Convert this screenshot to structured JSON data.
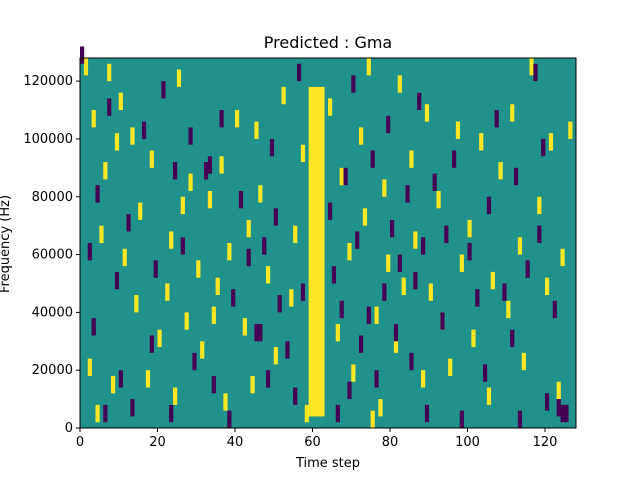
{
  "chart_data": {
    "type": "heatmap",
    "title": "Predicted : Gma",
    "xlabel": "Time step",
    "ylabel": "Frequency (Hz)",
    "xlim": [
      0,
      128
    ],
    "ylim": [
      0,
      128000
    ],
    "x_ticks": [
      0,
      20,
      40,
      60,
      80,
      100,
      120
    ],
    "y_ticks": [
      0,
      20000,
      40000,
      60000,
      80000,
      100000,
      120000
    ],
    "x_tick_labels": [
      "0",
      "20",
      "40",
      "60",
      "80",
      "100",
      "120"
    ],
    "y_tick_labels": [
      "0",
      "20000",
      "40000",
      "60000",
      "80000",
      "100000",
      "120000"
    ],
    "grid": false,
    "colormap": "viridis",
    "colors": {
      "background": "#21918c",
      "high": "#fde725",
      "low": "#440154"
    },
    "band_columns": [
      59,
      60,
      61,
      62
    ],
    "band_range_hz": [
      4000,
      118000
    ],
    "high_cells": [
      [
        1,
        122000
      ],
      [
        2,
        18000
      ],
      [
        3,
        104000
      ],
      [
        4,
        2000
      ],
      [
        5,
        64000
      ],
      [
        6,
        86000
      ],
      [
        7,
        120000
      ],
      [
        8,
        12000
      ],
      [
        9,
        96000
      ],
      [
        10,
        110000
      ],
      [
        11,
        56000
      ],
      [
        13,
        98000
      ],
      [
        14,
        40000
      ],
      [
        15,
        72000
      ],
      [
        17,
        14000
      ],
      [
        18,
        90000
      ],
      [
        20,
        28000
      ],
      [
        22,
        44000
      ],
      [
        23,
        62000
      ],
      [
        24,
        8000
      ],
      [
        25,
        118000
      ],
      [
        26,
        74000
      ],
      [
        27,
        34000
      ],
      [
        28,
        82000
      ],
      [
        30,
        52000
      ],
      [
        31,
        24000
      ],
      [
        33,
        76000
      ],
      [
        34,
        36000
      ],
      [
        35,
        46000
      ],
      [
        36,
        88000
      ],
      [
        37,
        6000
      ],
      [
        38,
        58000
      ],
      [
        40,
        104000
      ],
      [
        42,
        32000
      ],
      [
        43,
        66000
      ],
      [
        44,
        12000
      ],
      [
        45,
        100000
      ],
      [
        46,
        78000
      ],
      [
        48,
        50000
      ],
      [
        50,
        22000
      ],
      [
        52,
        112000
      ],
      [
        54,
        42000
      ],
      [
        55,
        64000
      ],
      [
        57,
        92000
      ],
      [
        58,
        2000
      ],
      [
        64,
        108000
      ],
      [
        66,
        30000
      ],
      [
        67,
        84000
      ],
      [
        69,
        58000
      ],
      [
        70,
        16000
      ],
      [
        72,
        98000
      ],
      [
        73,
        70000
      ],
      [
        74,
        122000
      ],
      [
        75,
        0
      ],
      [
        76,
        36000
      ],
      [
        77,
        4000
      ],
      [
        78,
        80000
      ],
      [
        79,
        54000
      ],
      [
        81,
        26000
      ],
      [
        82,
        116000
      ],
      [
        83,
        46000
      ],
      [
        85,
        90000
      ],
      [
        86,
        62000
      ],
      [
        88,
        14000
      ],
      [
        89,
        106000
      ],
      [
        90,
        44000
      ],
      [
        92,
        76000
      ],
      [
        93,
        34000
      ],
      [
        95,
        18000
      ],
      [
        97,
        100000
      ],
      [
        98,
        54000
      ],
      [
        100,
        66000
      ],
      [
        101,
        28000
      ],
      [
        103,
        96000
      ],
      [
        105,
        8000
      ],
      [
        106,
        48000
      ],
      [
        108,
        86000
      ],
      [
        110,
        38000
      ],
      [
        111,
        106000
      ],
      [
        113,
        60000
      ],
      [
        114,
        20000
      ],
      [
        116,
        122000
      ],
      [
        118,
        74000
      ],
      [
        120,
        46000
      ],
      [
        121,
        96000
      ],
      [
        123,
        10000
      ],
      [
        124,
        56000
      ],
      [
        126,
        100000
      ]
    ],
    "low_cells": [
      [
        0,
        126000
      ],
      [
        2,
        58000
      ],
      [
        3,
        32000
      ],
      [
        4,
        78000
      ],
      [
        6,
        2000
      ],
      [
        7,
        108000
      ],
      [
        9,
        48000
      ],
      [
        10,
        14000
      ],
      [
        12,
        68000
      ],
      [
        13,
        4000
      ],
      [
        16,
        100000
      ],
      [
        18,
        26000
      ],
      [
        19,
        52000
      ],
      [
        21,
        114000
      ],
      [
        23,
        2000
      ],
      [
        24,
        86000
      ],
      [
        26,
        60000
      ],
      [
        28,
        98000
      ],
      [
        29,
        20000
      ],
      [
        32,
        86000
      ],
      [
        33,
        88000
      ],
      [
        34,
        12000
      ],
      [
        36,
        104000
      ],
      [
        38,
        0
      ],
      [
        39,
        42000
      ],
      [
        41,
        76000
      ],
      [
        43,
        56000
      ],
      [
        45,
        30000
      ],
      [
        46,
        30000
      ],
      [
        47,
        60000
      ],
      [
        48,
        14000
      ],
      [
        49,
        94000
      ],
      [
        50,
        70000
      ],
      [
        51,
        40000
      ],
      [
        53,
        24000
      ],
      [
        55,
        8000
      ],
      [
        56,
        120000
      ],
      [
        57,
        44000
      ],
      [
        64,
        72000
      ],
      [
        65,
        50000
      ],
      [
        66,
        2000
      ],
      [
        67,
        38000
      ],
      [
        68,
        84000
      ],
      [
        69,
        10000
      ],
      [
        70,
        116000
      ],
      [
        71,
        62000
      ],
      [
        72,
        26000
      ],
      [
        74,
        36000
      ],
      [
        75,
        90000
      ],
      [
        76,
        14000
      ],
      [
        78,
        44000
      ],
      [
        79,
        102000
      ],
      [
        80,
        66000
      ],
      [
        81,
        30000
      ],
      [
        82,
        54000
      ],
      [
        84,
        78000
      ],
      [
        85,
        20000
      ],
      [
        86,
        48000
      ],
      [
        87,
        110000
      ],
      [
        88,
        60000
      ],
      [
        89,
        2000
      ],
      [
        91,
        82000
      ],
      [
        93,
        34000
      ],
      [
        94,
        64000
      ],
      [
        96,
        90000
      ],
      [
        98,
        0
      ],
      [
        100,
        58000
      ],
      [
        102,
        42000
      ],
      [
        104,
        16000
      ],
      [
        105,
        74000
      ],
      [
        107,
        104000
      ],
      [
        109,
        44000
      ],
      [
        111,
        28000
      ],
      [
        112,
        84000
      ],
      [
        113,
        0
      ],
      [
        115,
        52000
      ],
      [
        117,
        120000
      ],
      [
        118,
        64000
      ],
      [
        119,
        94000
      ],
      [
        120,
        6000
      ],
      [
        122,
        38000
      ],
      [
        123,
        4000
      ],
      [
        124,
        2000
      ],
      [
        125,
        2000
      ]
    ]
  }
}
